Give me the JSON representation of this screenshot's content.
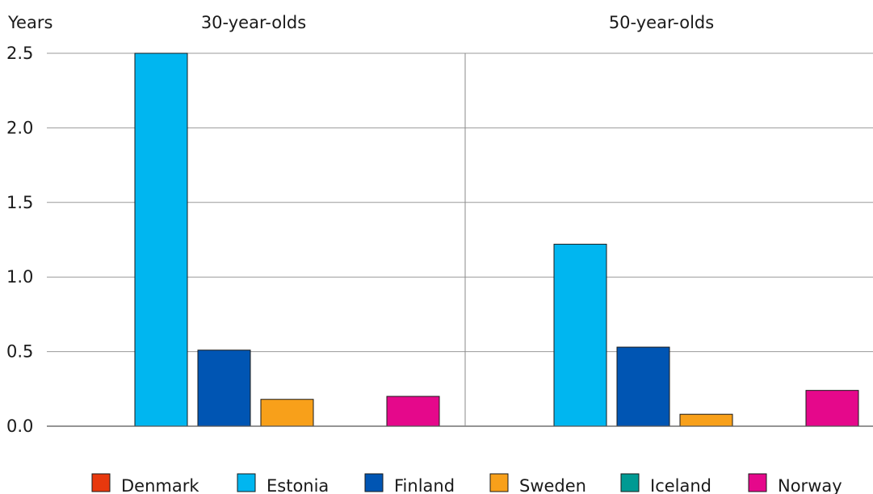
{
  "chart_data": {
    "type": "bar",
    "ylabel": "Years",
    "ylim": [
      0,
      2.5
    ],
    "yticks": [
      "0.0",
      "0.5",
      "1.0",
      "1.5",
      "2.0",
      "2.5"
    ],
    "grid": true,
    "legend_position": "bottom",
    "panels": [
      {
        "title": "30-year-olds",
        "values": [
          0,
          2.5,
          0.51,
          0.18,
          0,
          0.2
        ]
      },
      {
        "title": "50-year-olds",
        "values": [
          0,
          1.22,
          0.53,
          0.08,
          0,
          0.24
        ]
      }
    ],
    "series": [
      {
        "name": "Denmark",
        "color": "#e8380d"
      },
      {
        "name": "Estonia",
        "color": "#00b6f0"
      },
      {
        "name": "Finland",
        "color": "#0055b3"
      },
      {
        "name": "Sweden",
        "color": "#f8a01a"
      },
      {
        "name": "Iceland",
        "color": "#009a93"
      },
      {
        "name": "Norway",
        "color": "#e5088b"
      }
    ]
  }
}
